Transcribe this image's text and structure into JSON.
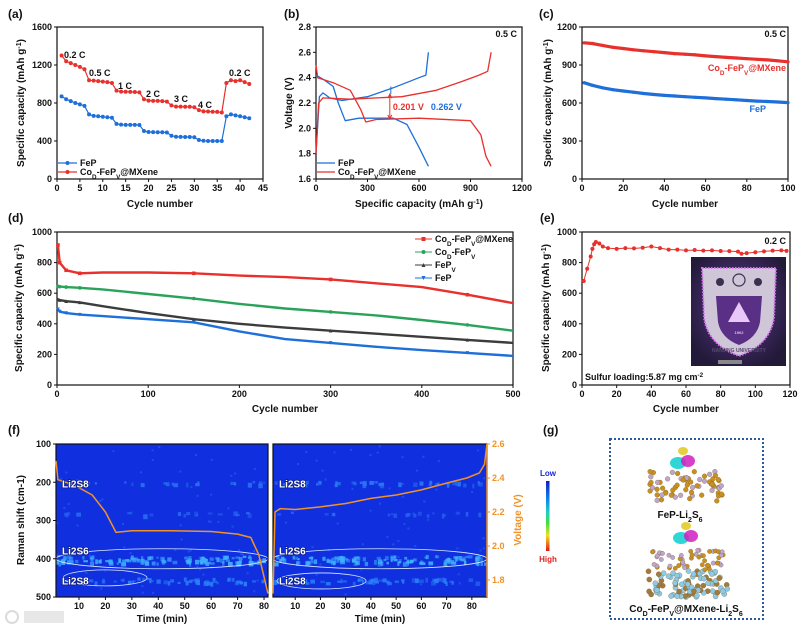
{
  "panel_labels": [
    "(a)",
    "(b)",
    "(c)",
    "(d)",
    "(e)",
    "(f)",
    "(g)"
  ],
  "colors": {
    "red": "#e8302c",
    "blue": "#1e6fd9",
    "green": "#2aa35a",
    "gray": "#3c3c3c",
    "orange": "#f0922a",
    "heatmap_bg": "#1030e0"
  },
  "chart_data": [
    {
      "type": "line",
      "xlabel": "Cycle number",
      "ylabel": "Specific capacity (mAh g-1)",
      "xlim": [
        0,
        45
      ],
      "ylim": [
        0,
        1600
      ],
      "xticks": [
        "0",
        "5",
        "10",
        "15",
        "20",
        "25",
        "30",
        "35",
        "40",
        "45"
      ],
      "yticks": [
        "0",
        "400",
        "800",
        "1200",
        "1600"
      ],
      "annotations": [
        "0.2 C",
        "0.5 C",
        "1 C",
        "2 C",
        "3 C",
        "4 C",
        "0.2 C"
      ],
      "series": [
        {
          "name": "FeP",
          "color": "#1e6fd9",
          "x": [
            1,
            2,
            3,
            4,
            5,
            6,
            7,
            8,
            9,
            10,
            11,
            12,
            13,
            14,
            15,
            16,
            17,
            18,
            19,
            20,
            21,
            22,
            23,
            24,
            25,
            26,
            27,
            28,
            29,
            30,
            31,
            32,
            33,
            34,
            35,
            36,
            37,
            38,
            39,
            40,
            41,
            42
          ],
          "y": [
            870,
            840,
            820,
            800,
            785,
            770,
            680,
            665,
            660,
            655,
            650,
            645,
            580,
            572,
            570,
            570,
            570,
            568,
            505,
            495,
            493,
            492,
            492,
            490,
            455,
            445,
            443,
            442,
            442,
            440,
            410,
            402,
            400,
            400,
            400,
            400,
            660,
            680,
            670,
            660,
            650,
            640
          ]
        },
        {
          "name": "CoD-FePV@MXene",
          "color": "#e8302c",
          "x": [
            1,
            2,
            3,
            4,
            5,
            6,
            7,
            8,
            9,
            10,
            11,
            12,
            13,
            14,
            15,
            16,
            17,
            18,
            19,
            20,
            21,
            22,
            23,
            24,
            25,
            26,
            27,
            28,
            29,
            30,
            31,
            32,
            33,
            34,
            35,
            36,
            37,
            38,
            39,
            40,
            41,
            42
          ],
          "y": [
            1300,
            1240,
            1220,
            1200,
            1180,
            1155,
            1040,
            1035,
            1030,
            1025,
            1020,
            1010,
            930,
            920,
            918,
            917,
            916,
            912,
            840,
            825,
            822,
            822,
            820,
            815,
            775,
            762,
            762,
            760,
            760,
            755,
            725,
            712,
            710,
            708,
            706,
            700,
            1010,
            1040,
            1030,
            1040,
            1020,
            1000
          ]
        }
      ]
    },
    {
      "type": "line",
      "xlabel": "Specific capacity (mAh g-1)",
      "ylabel": "Voltage (V)",
      "xlim": [
        0,
        1200
      ],
      "ylim": [
        1.6,
        2.8
      ],
      "xticks": [
        "0",
        "300",
        "600",
        "900",
        "1200"
      ],
      "yticks": [
        "1.6",
        "1.8",
        "2.0",
        "2.2",
        "2.4",
        "2.6",
        "2.8"
      ],
      "rate": "0.5 C",
      "polarization": [
        {
          "label": "0.201 V",
          "color": "#e8302c"
        },
        {
          "label": "0.262 V",
          "color": "#1e6fd9"
        }
      ],
      "legend": [
        "FeP",
        "CoD-FePV@MXene"
      ],
      "series": [
        {
          "name": "FeP discharge",
          "color": "#1e6fd9",
          "x": [
            0,
            50,
            100,
            130,
            170,
            250,
            450,
            530,
            600,
            655
          ],
          "y": [
            2.42,
            2.38,
            2.33,
            2.2,
            2.06,
            2.08,
            2.08,
            2.03,
            1.85,
            1.7
          ]
        },
        {
          "name": "FeP charge",
          "color": "#1e6fd9",
          "x": [
            0,
            20,
            40,
            80,
            150,
            300,
            450,
            600,
            640,
            655
          ],
          "y": [
            1.8,
            2.25,
            2.28,
            2.24,
            2.22,
            2.25,
            2.32,
            2.4,
            2.42,
            2.6
          ]
        },
        {
          "name": "CoD-FePV@MXene discharge",
          "color": "#e8302c",
          "x": [
            0,
            10,
            100,
            200,
            260,
            290,
            350,
            600,
            900,
            960,
            990,
            1020
          ],
          "y": [
            2.5,
            2.4,
            2.36,
            2.3,
            2.15,
            2.05,
            2.07,
            2.08,
            2.06,
            1.95,
            1.78,
            1.7
          ]
        },
        {
          "name": "CoD-FePV@MXene charge",
          "color": "#e8302c",
          "x": [
            0,
            15,
            40,
            200,
            500,
            700,
            850,
            950,
            1000,
            1020
          ],
          "y": [
            1.8,
            2.2,
            2.24,
            2.23,
            2.25,
            2.3,
            2.37,
            2.42,
            2.45,
            2.6
          ]
        }
      ]
    },
    {
      "type": "line",
      "xlabel": "Cycle number",
      "ylabel": "Specific capacity (mAh g-1)",
      "xlim": [
        0,
        100
      ],
      "ylim": [
        0,
        1200
      ],
      "xticks": [
        "0",
        "20",
        "40",
        "60",
        "80",
        "100"
      ],
      "yticks": [
        "0",
        "300",
        "600",
        "900",
        "1200"
      ],
      "rate": "0.5 C",
      "series": [
        {
          "name": "CoD-FePV@MXene",
          "color": "#e8302c",
          "x": [
            1,
            5,
            10,
            15,
            20,
            25,
            30,
            35,
            40,
            45,
            50,
            55,
            60,
            65,
            70,
            75,
            80,
            85,
            90,
            95,
            100
          ],
          "y": [
            1075,
            1070,
            1055,
            1040,
            1030,
            1020,
            1012,
            1005,
            998,
            990,
            985,
            980,
            972,
            966,
            960,
            955,
            950,
            945,
            940,
            933,
            925
          ]
        },
        {
          "name": "FeP",
          "color": "#1e6fd9",
          "x": [
            1,
            5,
            10,
            15,
            20,
            25,
            30,
            35,
            40,
            45,
            50,
            55,
            60,
            65,
            70,
            75,
            80,
            85,
            90,
            95,
            100
          ],
          "y": [
            760,
            740,
            720,
            705,
            695,
            685,
            675,
            667,
            660,
            655,
            650,
            645,
            640,
            635,
            630,
            625,
            620,
            615,
            612,
            608,
            603
          ]
        }
      ]
    },
    {
      "type": "line",
      "xlabel": "Cycle number",
      "ylabel": "Specific capacity (mAh g-1)",
      "xlim": [
        0,
        500
      ],
      "ylim": [
        0,
        1000
      ],
      "xticks": [
        "0",
        "100",
        "200",
        "300",
        "400",
        "500"
      ],
      "yticks": [
        "0",
        "200",
        "400",
        "600",
        "800",
        "1000"
      ],
      "legend_position": "top-right",
      "series": [
        {
          "name": "CoD-FePV@MXene",
          "color": "#e8302c",
          "marker": "square",
          "x": [
            1,
            3,
            10,
            25,
            50,
            100,
            150,
            200,
            250,
            300,
            350,
            400,
            450,
            500
          ],
          "y": [
            915,
            800,
            750,
            730,
            735,
            735,
            730,
            715,
            705,
            690,
            665,
            640,
            590,
            535
          ]
        },
        {
          "name": "CoD-FePV",
          "color": "#2aa35a",
          "marker": "circle",
          "x": [
            1,
            3,
            10,
            25,
            50,
            100,
            150,
            200,
            250,
            300,
            350,
            400,
            450,
            500
          ],
          "y": [
            645,
            643,
            640,
            635,
            625,
            595,
            565,
            530,
            500,
            478,
            455,
            425,
            393,
            355
          ]
        },
        {
          "name": "FePV",
          "color": "#3c3c3c",
          "marker": "triangle-up",
          "x": [
            1,
            3,
            10,
            25,
            50,
            100,
            150,
            200,
            250,
            300,
            350,
            400,
            450,
            500
          ],
          "y": [
            560,
            555,
            548,
            540,
            515,
            470,
            430,
            400,
            375,
            355,
            335,
            315,
            295,
            275
          ]
        },
        {
          "name": "FeP",
          "color": "#1e6fd9",
          "marker": "triangle-down",
          "x": [
            1,
            3,
            10,
            25,
            50,
            100,
            150,
            200,
            250,
            300,
            350,
            400,
            450,
            500
          ],
          "y": [
            495,
            480,
            470,
            460,
            450,
            430,
            410,
            350,
            300,
            275,
            250,
            228,
            210,
            190
          ]
        }
      ]
    },
    {
      "type": "line",
      "xlabel": "Cycle number",
      "ylabel": "Specific capacity (mAh g-1)",
      "xlim": [
        0,
        120
      ],
      "ylim": [
        0,
        1000
      ],
      "xticks": [
        "0",
        "20",
        "40",
        "60",
        "80",
        "100",
        "120"
      ],
      "yticks": [
        "0",
        "200",
        "400",
        "600",
        "800",
        "1000"
      ],
      "rate": "0.2 C",
      "note": "Sulfur loading:5.87 mg cm-2",
      "inset_logo_text": "NANJING UNIVERSITY",
      "inset_logo_year": "1902",
      "series": [
        {
          "name": "capacity",
          "color": "#e8302c",
          "x": [
            1,
            3,
            5,
            6,
            7,
            8,
            10,
            12,
            15,
            20,
            25,
            30,
            35,
            40,
            45,
            50,
            55,
            60,
            65,
            70,
            75,
            80,
            85,
            90,
            92,
            95,
            100,
            105,
            110,
            115,
            118
          ],
          "y": [
            680,
            760,
            840,
            890,
            920,
            935,
            925,
            905,
            895,
            890,
            895,
            893,
            897,
            905,
            895,
            885,
            885,
            880,
            882,
            878,
            880,
            876,
            875,
            872,
            858,
            862,
            868,
            873,
            878,
            880,
            877
          ]
        }
      ]
    },
    {
      "type": "heatmap",
      "xlabel": "Time (min)",
      "ylabel": "Raman shift (cm-1)",
      "y2label": "Voltage (V)",
      "xlim_left": [
        1.3,
        81.5
      ],
      "xlim_right": [
        1.2,
        86
      ],
      "ylim": [
        100,
        500
      ],
      "y2lim": [
        1.7,
        2.6
      ],
      "xticks": [
        "10",
        "20",
        "30",
        "40",
        "50",
        "60",
        "70",
        "80"
      ],
      "yticks": [
        "100",
        "200",
        "300",
        "400",
        "500"
      ],
      "y2ticks": [
        "1.8",
        "2.0",
        "2.2",
        "2.4",
        "2.6"
      ],
      "colorbar": {
        "low": "Low",
        "high": "High"
      },
      "band_labels_left": [
        "Li2S8",
        "Li2S6",
        "Li2S8"
      ],
      "band_labels_right": [
        "Li2S8",
        "Li2S6",
        "Li2S8"
      ],
      "band_raman_shift": [
        200,
        400,
        455
      ],
      "voltage_discharge": {
        "x": [
          1.3,
          2,
          8,
          15,
          20,
          24,
          30,
          45,
          60,
          70,
          75,
          78,
          81.5
        ],
        "y": [
          2.5,
          2.39,
          2.36,
          2.3,
          2.2,
          2.08,
          2.09,
          2.09,
          2.085,
          2.07,
          2.05,
          1.95,
          1.72
        ]
      },
      "voltage_charge": {
        "x": [
          1.2,
          2,
          4,
          10,
          20,
          30,
          40,
          50,
          60,
          70,
          78,
          83,
          85,
          86
        ],
        "y": [
          1.72,
          2.2,
          2.22,
          2.215,
          2.23,
          2.25,
          2.28,
          2.3,
          2.33,
          2.37,
          2.4,
          2.43,
          2.48,
          2.6
        ]
      }
    }
  ],
  "figure_g": {
    "labels": [
      "FeP-Li2S6",
      "CoD-FePV@MXene-Li2S6"
    ]
  },
  "watermark": "大数跨境"
}
